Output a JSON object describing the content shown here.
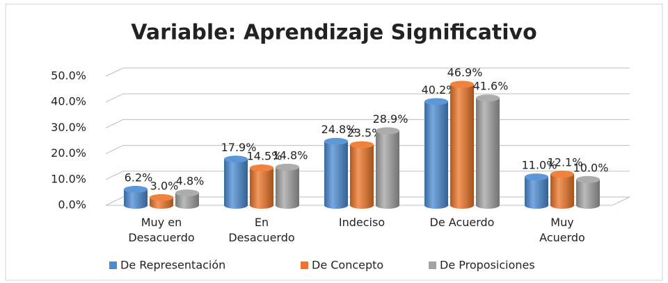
{
  "chart_data": {
    "type": "bar",
    "title": "Variable: Aprendizaje Significativo",
    "categories": [
      "Muy en\nDesacuerdo",
      "En\nDesacuerdo",
      "Indeciso",
      "De Acuerdo",
      "Muy\nAcuerdo"
    ],
    "series": [
      {
        "name": "De Representación",
        "color": "#4a8bd4",
        "values": [
          6.2,
          17.9,
          24.8,
          40.2,
          11.0
        ],
        "value_labels": [
          "6.2%",
          "17.9%",
          "24.8%",
          "40.2%",
          "11.0%"
        ]
      },
      {
        "name": "De Concepto",
        "color": "#ed7428",
        "values": [
          3.0,
          14.5,
          23.5,
          46.9,
          12.1
        ],
        "value_labels": [
          "3.0%",
          "14.5%",
          "23.5%",
          "46.9%",
          "12.1%"
        ]
      },
      {
        "name": "De Proposiciones",
        "color": "#a3a3a3",
        "values": [
          4.8,
          14.8,
          28.9,
          41.6,
          10.0
        ],
        "value_labels": [
          "4.8%",
          "14.8%",
          "28.9%",
          "41.6%",
          "10.0%"
        ]
      }
    ],
    "ylim": [
      0,
      50
    ],
    "yticks": [
      {
        "value": 0,
        "label": "0.0%"
      },
      {
        "value": 10,
        "label": "10.0%"
      },
      {
        "value": 20,
        "label": "20.0%"
      },
      {
        "value": 30,
        "label": "30.0%"
      },
      {
        "value": 40,
        "label": "40.0%"
      },
      {
        "value": 50,
        "label": "50.0%"
      }
    ],
    "grid": true,
    "legend": "bottom"
  }
}
